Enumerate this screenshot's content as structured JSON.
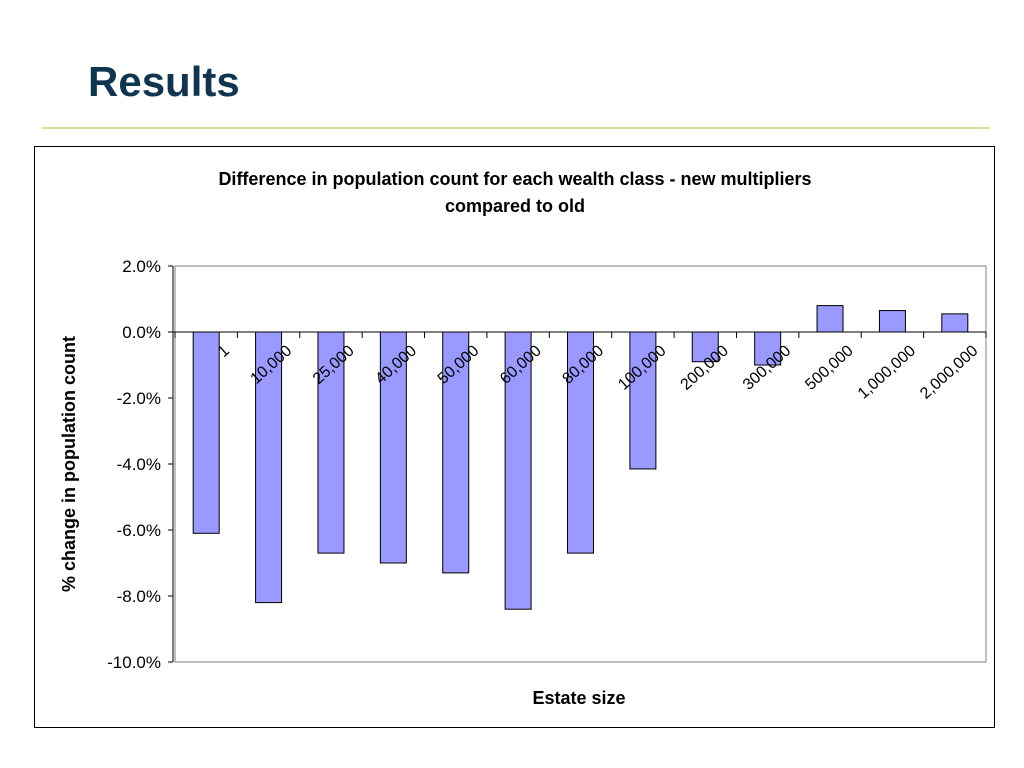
{
  "slide": {
    "title": "Results"
  },
  "chart_data": {
    "type": "bar",
    "title": "Difference in population count for each wealth class - new multipliers compared to old",
    "title_lines": [
      "Difference in population count for each wealth class - new multipliers",
      "compared to old"
    ],
    "xlabel": "Estate size",
    "ylabel": "% change in population count",
    "categories": [
      "1",
      "10,000",
      "25,000",
      "40,000",
      "50,000",
      "60,000",
      "80,000",
      "100,000",
      "200,000",
      "300,000",
      "500,000",
      "1,000,000",
      "2,000,000"
    ],
    "values": [
      -6.1,
      -8.2,
      -6.7,
      -7.0,
      -7.3,
      -8.4,
      -6.7,
      -4.15,
      -0.9,
      -1.0,
      0.8,
      0.65,
      0.55
    ],
    "ylim": [
      -10.0,
      2.0
    ],
    "yticks": [
      "2.0%",
      "0.0%",
      "-2.0%",
      "-4.0%",
      "-6.0%",
      "-8.0%",
      "-10.0%"
    ],
    "ytick_values": [
      2,
      0,
      -2,
      -4,
      -6,
      -8,
      -10
    ],
    "bar_color": "#9999ff",
    "grid": false,
    "legend": "none"
  }
}
